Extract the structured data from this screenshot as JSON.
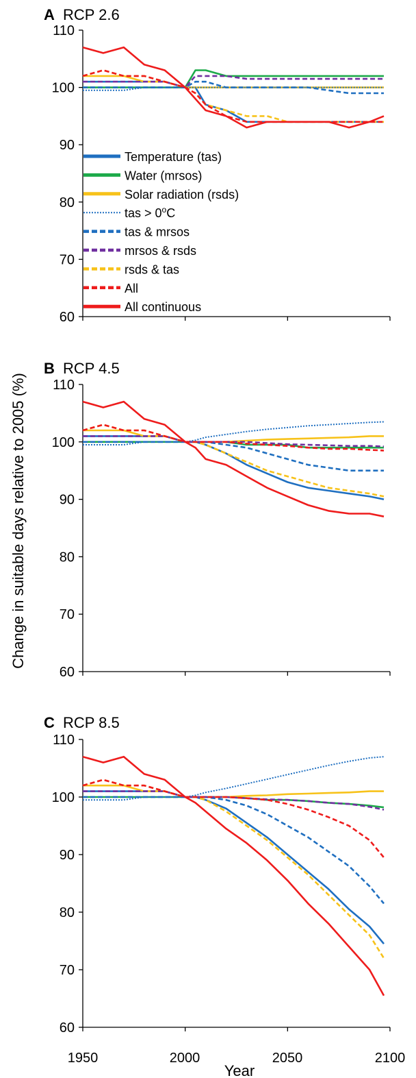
{
  "figure": {
    "ylabel": "Change in suitable days relative to 2005 (%)",
    "xlabel": "Year",
    "xticks": [
      "1950",
      "2000",
      "2050",
      "2100"
    ]
  },
  "legend": [
    {
      "label": "Temperature (tas)",
      "color": "#1f6fc0",
      "style": "solid"
    },
    {
      "label": "Water (mrsos)",
      "color": "#1daa4a",
      "style": "solid"
    },
    {
      "label": "Solar radiation (rsds)",
      "color": "#f7c21a",
      "style": "solid"
    },
    {
      "label": "tas > 0ºC",
      "label_main": "tas > 0",
      "label_sup": "o",
      "label_end": "C",
      "color": "#1f6fc0",
      "style": "dotted"
    },
    {
      "label": "tas & mrsos",
      "color": "#1f6fc0",
      "style": "dashed"
    },
    {
      "label": "mrsos & rsds",
      "color": "#7030a0",
      "style": "dashed"
    },
    {
      "label": "rsds & tas",
      "color": "#f7c21a",
      "style": "dashed"
    },
    {
      "label": "All",
      "color": "#ee1c1c",
      "style": "dashed"
    },
    {
      "label": "All continuous",
      "color": "#ee1c1c",
      "style": "solid"
    }
  ],
  "chart_data": [
    {
      "type": "line",
      "panel_letter": "A",
      "title": "RCP 2.6",
      "x": [
        1950,
        1960,
        1970,
        1980,
        1990,
        2000,
        2005,
        2010,
        2020,
        2030,
        2040,
        2050,
        2060,
        2070,
        2080,
        2090,
        2097
      ],
      "ylim": [
        60,
        110
      ],
      "xlim": [
        1950,
        2100
      ],
      "yticks": [
        60,
        70,
        80,
        90,
        100,
        110
      ],
      "series": [
        {
          "name": "Temperature (tas)",
          "values": [
            101,
            101,
            101,
            101,
            101,
            100,
            100,
            97,
            96,
            94,
            94,
            94,
            94,
            94,
            94,
            94,
            94
          ]
        },
        {
          "name": "Water (mrsos)",
          "values": [
            100,
            100,
            100,
            100,
            100,
            100,
            103,
            103,
            102,
            102,
            102,
            102,
            102,
            102,
            102,
            102,
            102
          ]
        },
        {
          "name": "Solar radiation (rsds)",
          "values": [
            102,
            102,
            102,
            101,
            101,
            100,
            100,
            100,
            100,
            100,
            100,
            100,
            100,
            100,
            100,
            100,
            100
          ]
        },
        {
          "name": "tas > 0ºC",
          "values": [
            99.5,
            99.5,
            99.5,
            100,
            100,
            100,
            100,
            100,
            100,
            100,
            100,
            100,
            100,
            100,
            100,
            100,
            100
          ]
        },
        {
          "name": "tas & mrsos",
          "values": [
            100,
            100,
            100,
            100,
            100,
            100,
            101,
            101,
            100,
            100,
            100,
            100,
            100,
            99.5,
            99,
            99,
            99
          ]
        },
        {
          "name": "mrsos & rsds",
          "values": [
            101,
            101,
            101,
            101,
            101,
            100,
            102,
            102,
            102,
            101.5,
            101.5,
            101.5,
            101.5,
            101.5,
            101.5,
            101.5,
            101.5
          ]
        },
        {
          "name": "rsds & tas",
          "values": [
            102,
            103,
            102,
            102,
            101,
            100,
            99,
            97,
            96,
            95,
            95,
            94,
            94,
            94,
            94,
            94,
            94
          ]
        },
        {
          "name": "All",
          "values": [
            102,
            103,
            102,
            102,
            101,
            100,
            99,
            97,
            95,
            94,
            94,
            94,
            94,
            94,
            94,
            94,
            94
          ]
        },
        {
          "name": "All continuous",
          "values": [
            107,
            106,
            107,
            104,
            103,
            100,
            98,
            96,
            95,
            93,
            94,
            94,
            94,
            94,
            93,
            94,
            95
          ]
        }
      ]
    },
    {
      "type": "line",
      "panel_letter": "B",
      "title": "RCP 4.5",
      "x": [
        1950,
        1960,
        1970,
        1980,
        1990,
        2000,
        2005,
        2010,
        2020,
        2030,
        2040,
        2050,
        2060,
        2070,
        2080,
        2090,
        2097
      ],
      "ylim": [
        60,
        110
      ],
      "xlim": [
        1950,
        2100
      ],
      "yticks": [
        60,
        70,
        80,
        90,
        100,
        110
      ],
      "series": [
        {
          "name": "Temperature (tas)",
          "values": [
            101,
            101,
            101,
            101,
            101,
            100,
            100,
            99.5,
            98,
            96,
            94.5,
            93,
            92,
            91.5,
            91,
            90.5,
            90
          ]
        },
        {
          "name": "Water (mrsos)",
          "values": [
            100,
            100,
            100,
            100,
            100,
            100,
            100,
            100,
            100,
            99.5,
            99.5,
            99.5,
            99,
            99,
            99,
            99,
            99
          ]
        },
        {
          "name": "Solar radiation (rsds)",
          "values": [
            102,
            102,
            102,
            101,
            101,
            100,
            100,
            100,
            100,
            100.2,
            100.4,
            100.5,
            100.6,
            100.7,
            100.8,
            101,
            101
          ]
        },
        {
          "name": "tas > 0ºC",
          "values": [
            99.5,
            99.5,
            99.5,
            100,
            100,
            100,
            100.3,
            100.8,
            101.3,
            101.8,
            102.2,
            102.5,
            102.8,
            103,
            103.2,
            103.4,
            103.5
          ]
        },
        {
          "name": "tas & mrsos",
          "values": [
            100,
            100,
            100,
            100,
            100,
            100,
            100,
            100,
            99.5,
            99,
            98,
            97,
            96,
            95.5,
            95,
            95,
            95
          ]
        },
        {
          "name": "mrsos & rsds",
          "values": [
            101,
            101,
            101,
            101,
            101,
            100,
            100,
            100,
            100,
            100,
            99.8,
            99.6,
            99.5,
            99.4,
            99.3,
            99.3,
            99.2
          ]
        },
        {
          "name": "rsds & tas",
          "values": [
            102,
            103,
            102,
            102,
            101,
            100,
            100,
            99.5,
            98,
            96.5,
            95,
            94,
            93,
            92,
            91.5,
            91,
            90.5
          ]
        },
        {
          "name": "All",
          "values": [
            102,
            103,
            102,
            102,
            101,
            100,
            100,
            100,
            100,
            99.7,
            99.5,
            99.3,
            99,
            98.8,
            98.8,
            98.6,
            98.5
          ]
        },
        {
          "name": "All continuous",
          "values": [
            107,
            106,
            107,
            104,
            103,
            100,
            99,
            97,
            96,
            94,
            92,
            90.5,
            89,
            88,
            87.5,
            87.5,
            87
          ]
        }
      ]
    },
    {
      "type": "line",
      "panel_letter": "C",
      "title": "RCP 8.5",
      "x": [
        1950,
        1960,
        1970,
        1980,
        1990,
        2000,
        2005,
        2010,
        2020,
        2030,
        2040,
        2050,
        2060,
        2070,
        2080,
        2090,
        2097
      ],
      "ylim": [
        60,
        110
      ],
      "xlim": [
        1950,
        2100
      ],
      "yticks": [
        60,
        70,
        80,
        90,
        100,
        110
      ],
      "series": [
        {
          "name": "Temperature (tas)",
          "values": [
            101,
            101,
            101,
            101,
            101,
            100,
            100,
            99.5,
            98,
            95.5,
            93,
            90,
            87,
            84,
            80.5,
            77.5,
            74.5
          ]
        },
        {
          "name": "Water (mrsos)",
          "values": [
            100,
            100,
            100,
            100,
            100,
            100,
            100,
            100,
            100,
            99.8,
            99.5,
            99.5,
            99.3,
            99,
            98.8,
            98.5,
            98.2
          ]
        },
        {
          "name": "Solar radiation (rsds)",
          "values": [
            102,
            102,
            102,
            101,
            101,
            100,
            100,
            100,
            100,
            100.2,
            100.3,
            100.5,
            100.6,
            100.7,
            100.8,
            101,
            101
          ]
        },
        {
          "name": "tas > 0ºC",
          "values": [
            99.5,
            99.5,
            99.5,
            100,
            100,
            100,
            100.3,
            100.8,
            101.5,
            102.3,
            103.1,
            103.9,
            104.7,
            105.5,
            106.2,
            106.8,
            107
          ]
        },
        {
          "name": "tas & mrsos",
          "values": [
            100,
            100,
            100,
            100,
            100,
            100,
            100,
            100,
            99.5,
            98.5,
            97,
            95,
            93,
            90.5,
            88,
            84.5,
            81.5
          ]
        },
        {
          "name": "mrsos & rsds",
          "values": [
            101,
            101,
            101,
            101,
            101,
            100,
            100,
            100,
            100,
            99.8,
            99.6,
            99.5,
            99.3,
            99,
            98.8,
            98.3,
            97.8
          ]
        },
        {
          "name": "rsds & tas",
          "values": [
            102,
            103,
            102,
            102,
            101,
            100,
            100,
            99.5,
            97.5,
            95,
            92.5,
            89.5,
            86.5,
            83,
            79.5,
            76,
            72
          ]
        },
        {
          "name": "All",
          "values": [
            102,
            103,
            102,
            102,
            101,
            100,
            100,
            100,
            100,
            99.8,
            99.5,
            98.8,
            97.8,
            96.5,
            95,
            92.5,
            89.5
          ]
        },
        {
          "name": "All continuous",
          "values": [
            107,
            106,
            107,
            104,
            103,
            100,
            99,
            97.5,
            94.5,
            92,
            89,
            85.5,
            81.5,
            78,
            74,
            70,
            65.5
          ]
        }
      ]
    }
  ]
}
